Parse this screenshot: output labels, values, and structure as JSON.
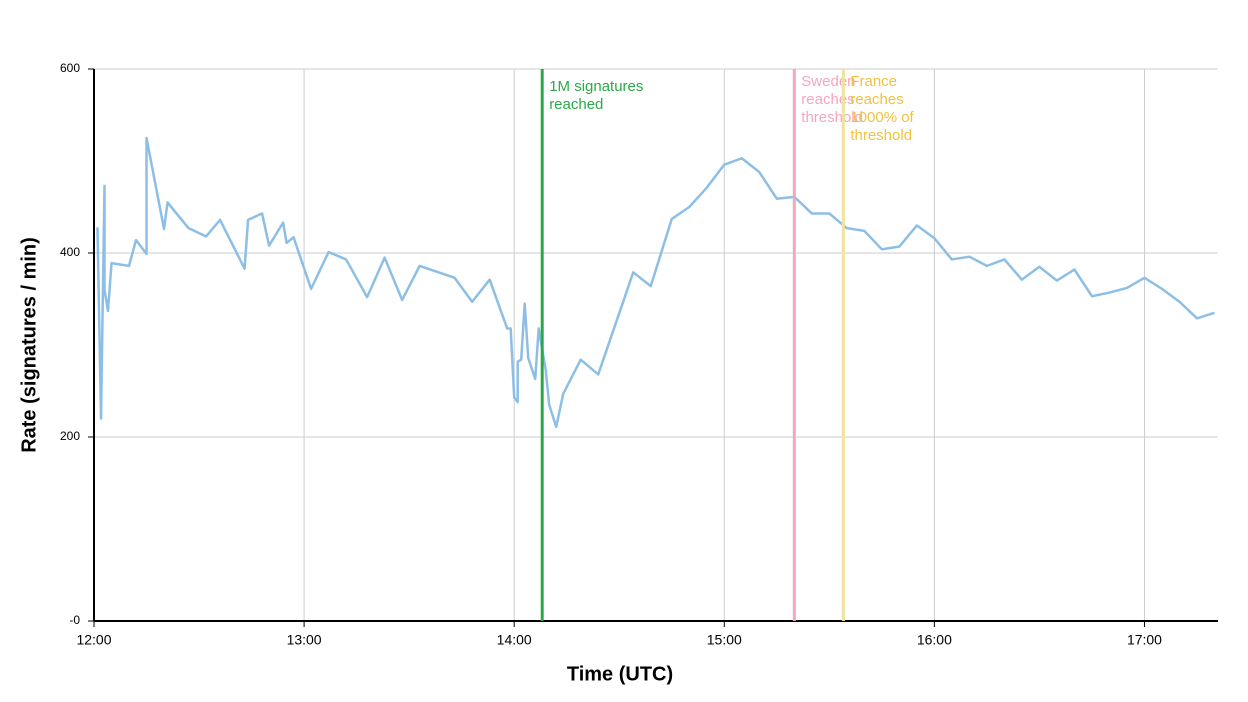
{
  "chart_data": {
    "type": "line",
    "x_label": "Time (UTC)",
    "y_label": "Rate (signatures / min)",
    "x": [
      "12:01",
      "12:02",
      "12:03",
      "12:03",
      "12:04",
      "12:05",
      "12:10",
      "12:12",
      "12:15",
      "12:15",
      "12:20",
      "12:21",
      "12:27",
      "12:32",
      "12:36",
      "12:43",
      "12:44",
      "12:48",
      "12:50",
      "12:54",
      "12:55",
      "12:57",
      "13:02",
      "13:07",
      "13:12",
      "13:18",
      "13:23",
      "13:28",
      "13:33",
      "13:43",
      "13:48",
      "13:53",
      "13:58",
      "13:59",
      "14:00",
      "14:01",
      "14:01",
      "14:02",
      "14:03",
      "14:04",
      "14:06",
      "14:07",
      "14:09",
      "14:10",
      "14:12",
      "14:14",
      "14:19",
      "14:24",
      "14:34",
      "14:39",
      "14:45",
      "14:50",
      "14:55",
      "15:00",
      "15:05",
      "15:10",
      "15:15",
      "15:20",
      "15:25",
      "15:30",
      "15:35",
      "15:40",
      "15:45",
      "15:50",
      "15:55",
      "16:00",
      "16:05",
      "16:10",
      "16:15",
      "16:20",
      "16:25",
      "16:30",
      "16:35",
      "16:40",
      "16:45",
      "16:50",
      "16:55",
      "17:00",
      "17:05",
      "17:10",
      "17:15",
      "17:20"
    ],
    "series": [
      {
        "color": "#8dbfe6",
        "values": [
          428,
          220,
          473,
          360,
          337,
          389,
          386,
          414,
          399,
          525,
          426,
          455,
          427,
          418,
          436,
          383,
          436,
          443,
          408,
          433,
          411,
          417,
          361,
          401,
          393,
          352,
          395,
          349,
          386,
          373,
          347,
          371,
          318,
          318,
          243,
          238,
          282,
          284,
          345,
          286,
          263,
          318,
          273,
          235,
          211,
          247,
          284,
          268,
          379,
          364,
          437,
          450,
          471,
          496,
          503,
          488,
          459,
          461,
          443,
          443,
          427,
          424,
          404,
          407,
          430,
          416,
          393,
          396,
          386,
          393,
          371,
          385,
          370,
          382,
          353,
          357,
          362,
          373,
          361,
          347,
          329,
          335
        ]
      }
    ],
    "xlim": [
      "12:00",
      "17:21"
    ],
    "xticks": [
      "12:00",
      "13:00",
      "14:00",
      "15:00",
      "16:00",
      "17:00"
    ],
    "ylim": [
      0,
      600
    ],
    "yticks": [
      {
        "value": 0,
        "label": "-0"
      },
      200,
      400,
      600
    ],
    "grid": true,
    "annotations": [
      {
        "x": "14:08",
        "color": "#2ca84a",
        "text_color": "#2ca84a",
        "lines": [
          "1M signatures",
          "reached"
        ]
      },
      {
        "x": "15:20",
        "color": "#f4a6bf",
        "text_color": "#f4a6bf",
        "lines": [
          "Sweden",
          "reaches",
          "threshold"
        ]
      },
      {
        "x": "15:34",
        "color": "#efe39e",
        "text_color": "#f2c23c",
        "lines": [
          "France",
          "reaches",
          "1000% of",
          "threshold"
        ]
      }
    ]
  }
}
